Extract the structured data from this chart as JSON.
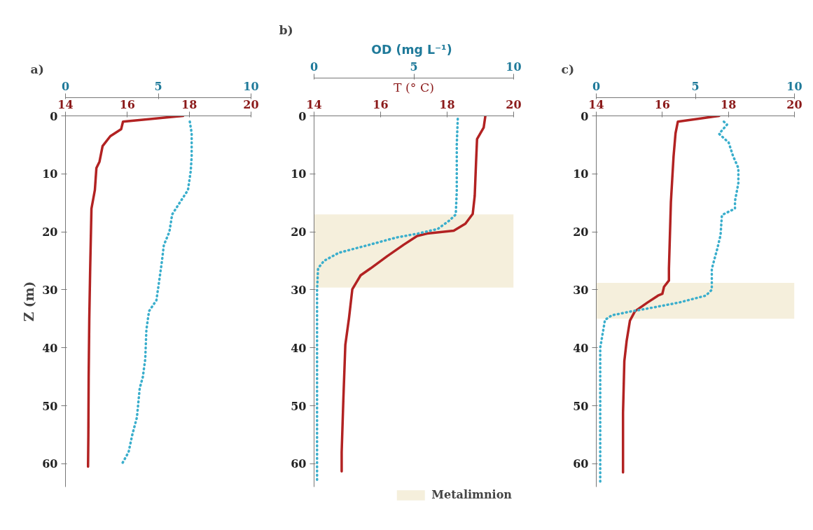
{
  "chart_data": [
    {
      "type": "line",
      "title": "a)",
      "ylabel": "Z (m)",
      "xlim": [
        14,
        20
      ],
      "xticks": [
        14,
        16,
        18,
        20
      ],
      "x2lim": [
        0,
        10
      ],
      "x2ticks": [
        0,
        5,
        10
      ],
      "ylim": [
        64,
        0
      ],
      "yticks": [
        0,
        10,
        20,
        30,
        40,
        50,
        60
      ],
      "grid": false,
      "marker": "none",
      "series": [
        {
          "color": "#b22222",
          "line_style": "solid",
          "x": [
            17.8,
            15.86,
            15.8,
            15.45,
            15.2,
            15.1,
            15.0,
            14.95,
            14.84,
            14.8,
            14.77,
            14.75,
            14.74,
            14.73
          ],
          "values": [
            0,
            1,
            2.3,
            3.5,
            5.2,
            7.9,
            9,
            12.8,
            16,
            26,
            35,
            45,
            55,
            60.5
          ]
        },
        {
          "color": "#3aaecc",
          "line_style": "dotted",
          "axis": "x2",
          "x": [
            6.7,
            6.8,
            6.8,
            6.75,
            6.6,
            6.05,
            5.75,
            5.6,
            5.3,
            5.2,
            5.07,
            4.9,
            4.5,
            4.36,
            4.3,
            4.17,
            4.0,
            3.85,
            3.6,
            3.4,
            3.05
          ],
          "values": [
            1,
            3,
            7,
            9.5,
            12.8,
            15.5,
            17,
            20,
            22.3,
            25,
            28,
            31.8,
            33.7,
            36.9,
            41.9,
            45,
            47,
            52,
            55,
            58,
            60
          ]
        }
      ]
    },
    {
      "type": "line",
      "title": "b)",
      "xlabel": "T (° C)",
      "x2label": "OD  (mg L⁻¹)",
      "xlim": [
        14,
        20
      ],
      "xticks": [
        14,
        16,
        18,
        20
      ],
      "x2lim": [
        0,
        10
      ],
      "x2ticks": [
        0,
        5,
        10
      ],
      "ylim": [
        64,
        0
      ],
      "yticks": [
        0,
        10,
        20,
        30,
        40,
        50,
        60
      ],
      "grid": false,
      "marker": "none",
      "bands": [
        {
          "axis": "y",
          "from": 17,
          "to": 29.6,
          "color": "#f5efdc",
          "label": "Metalimnion"
        }
      ],
      "series": [
        {
          "color": "#b22222",
          "line_style": "solid",
          "x": [
            19.15,
            19.1,
            18.9,
            18.87,
            18.83,
            18.77,
            18.55,
            18.2,
            17.4,
            17.1,
            16.7,
            16.2,
            15.7,
            15.4,
            15.15,
            15.05,
            14.94,
            14.88,
            14.83,
            14.83
          ],
          "values": [
            0,
            2,
            4,
            8,
            13.8,
            16.9,
            18.6,
            19.8,
            20.3,
            20.7,
            22.2,
            24.2,
            26.3,
            27.5,
            29.9,
            34.9,
            39.5,
            49,
            58,
            61.3
          ]
        },
        {
          "color": "#3aaecc",
          "line_style": "dotted",
          "axis": "x2",
          "x": [
            7.2,
            7.15,
            7.15,
            7.1,
            6.8,
            6.2,
            5.2,
            4.1,
            2.7,
            1.25,
            0.5,
            0.2,
            0.15,
            0.15
          ],
          "values": [
            0.5,
            5,
            13,
            17,
            18,
            19.5,
            20.3,
            21,
            22.3,
            23.6,
            25,
            26.3,
            30,
            63
          ]
        }
      ]
    },
    {
      "type": "line",
      "title": "c)",
      "xlim": [
        14,
        20
      ],
      "xticks": [
        14,
        16,
        18,
        20
      ],
      "x2lim": [
        0,
        10
      ],
      "x2ticks": [
        0,
        5,
        10
      ],
      "ylim": [
        64,
        0
      ],
      "yticks": [
        0,
        10,
        20,
        30,
        40,
        50,
        60
      ],
      "grid": false,
      "marker": "none",
      "bands": [
        {
          "axis": "y",
          "from": 28.8,
          "to": 35,
          "color": "#f5efdc"
        }
      ],
      "series": [
        {
          "color": "#b22222",
          "line_style": "solid",
          "x": [
            17.72,
            16.47,
            16.4,
            16.34,
            16.26,
            16.2,
            16.2,
            16.05,
            16.0,
            15.87,
            15.55,
            15.17,
            15.02,
            14.92,
            14.85,
            14.81,
            14.81
          ],
          "values": [
            0,
            1,
            3,
            7,
            14.8,
            26.3,
            28.4,
            29.5,
            30.7,
            31,
            32.2,
            33.7,
            35.3,
            38.8,
            42.3,
            51.2,
            61.5
          ]
        },
        {
          "color": "#3aaecc",
          "line_style": "dotted",
          "axis": "x2",
          "x": [
            6.44,
            6.6,
            6.2,
            6.68,
            6.9,
            7.17,
            7.17,
            7.0,
            7.0,
            6.34,
            6.27,
            6.1,
            5.83,
            5.83,
            5.53,
            4.17,
            2.8,
            1.8,
            0.78,
            0.44,
            0.2,
            0.2
          ],
          "values": [
            1,
            1.5,
            3.1,
            4.6,
            6.9,
            9,
            11.6,
            14.7,
            16,
            17.1,
            20.6,
            23,
            26.4,
            30,
            31,
            32.2,
            33.1,
            33.7,
            34.4,
            35.2,
            40,
            63.6
          ]
        }
      ]
    }
  ]
}
